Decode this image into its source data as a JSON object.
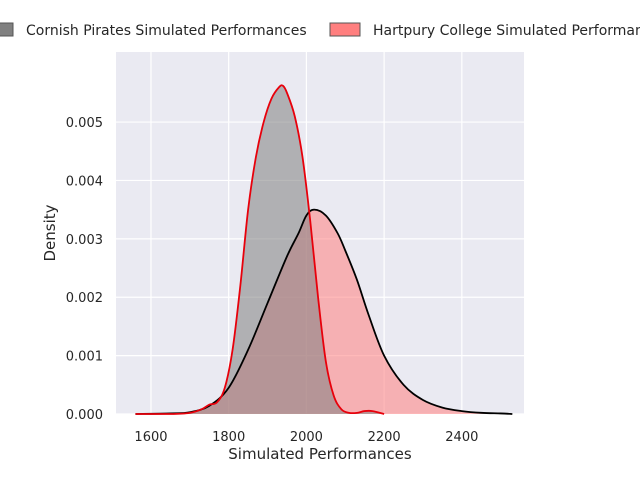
{
  "chart_data": {
    "type": "area",
    "title": "",
    "xlabel": "Simulated Performances",
    "ylabel": "Density",
    "xlim": [
      1510,
      2560
    ],
    "ylim": [
      0,
      0.0062
    ],
    "x_ticks": [
      1600,
      1800,
      2000,
      2200,
      2400
    ],
    "y_ticks": [
      0.0,
      0.001,
      0.002,
      0.003,
      0.004,
      0.005
    ],
    "x_tick_labels": [
      "1600",
      "1800",
      "2000",
      "2200",
      "2400"
    ],
    "y_tick_labels": [
      "0.000",
      "0.001",
      "0.002",
      "0.003",
      "0.004",
      "0.005"
    ],
    "grid": true,
    "legend_position": "top",
    "series": [
      {
        "name": "Cornish Pirates Simulated Performances",
        "fill_color": "#808080",
        "line_color": "#e8000b",
        "x": [
          1560,
          1650,
          1700,
          1730,
          1750,
          1770,
          1790,
          1810,
          1830,
          1850,
          1870,
          1890,
          1910,
          1930,
          1940,
          1950,
          1970,
          1990,
          2010,
          2030,
          2050,
          2070,
          2090,
          2110,
          2130,
          2150,
          2170,
          2200
        ],
        "y": [
          0.0,
          0.0,
          2e-05,
          8e-05,
          0.00016,
          0.0002,
          0.00045,
          0.0011,
          0.0022,
          0.0035,
          0.0044,
          0.005,
          0.0054,
          0.0056,
          0.00562,
          0.0055,
          0.0051,
          0.0044,
          0.0033,
          0.002,
          0.0009,
          0.00032,
          8e-05,
          2e-05,
          2e-05,
          5e-05,
          5e-05,
          0.0
        ]
      },
      {
        "name": "Hartpury College Simulated Performances",
        "fill_color": "#ff7f7f",
        "line_color": "#000000",
        "x": [
          1560,
          1650,
          1700,
          1750,
          1800,
          1850,
          1900,
          1950,
          1980,
          2000,
          2020,
          2050,
          2080,
          2100,
          2130,
          2160,
          2200,
          2250,
          2300,
          2350,
          2400,
          2450,
          2500,
          2530
        ],
        "y": [
          0.0,
          1e-05,
          3e-05,
          0.00014,
          0.00045,
          0.0011,
          0.0019,
          0.0027,
          0.0031,
          0.0034,
          0.0035,
          0.0034,
          0.0031,
          0.0028,
          0.0023,
          0.0017,
          0.001,
          0.0005,
          0.00024,
          0.00011,
          5e-05,
          2e-05,
          1e-05,
          0.0
        ]
      }
    ]
  }
}
